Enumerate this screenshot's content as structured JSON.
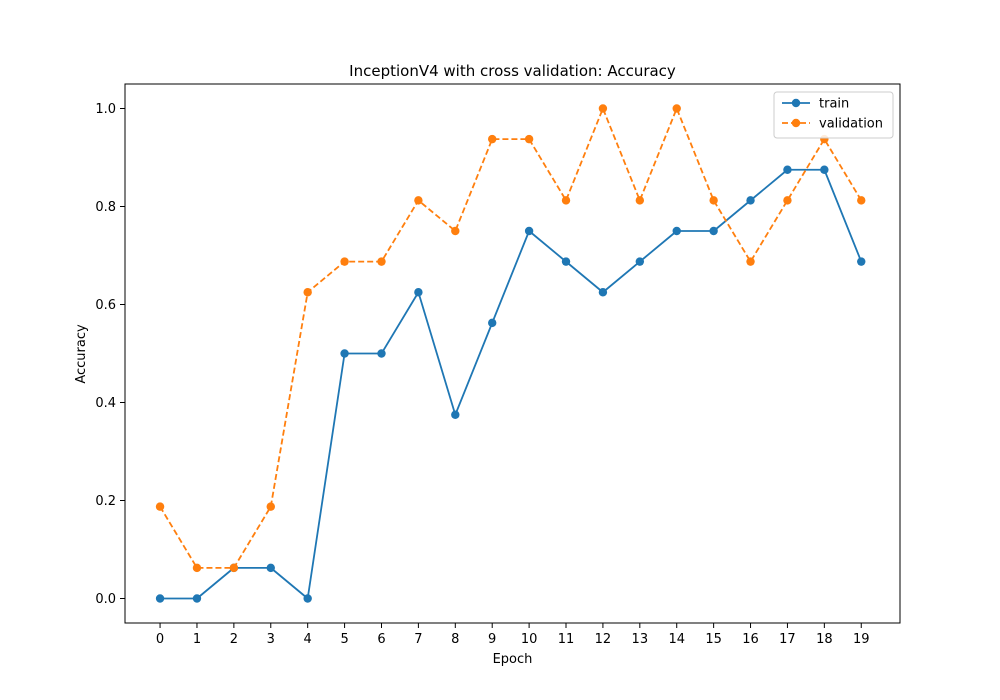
{
  "chart_data": {
    "type": "line",
    "title": "InceptionV4 with cross validation: Accuracy",
    "xlabel": "Epoch",
    "ylabel": "Accuracy",
    "x": [
      0,
      1,
      2,
      3,
      4,
      5,
      6,
      7,
      8,
      9,
      10,
      11,
      12,
      13,
      14,
      15,
      16,
      17,
      18,
      19
    ],
    "x_ticks": [
      "0",
      "1",
      "2",
      "3",
      "4",
      "5",
      "6",
      "7",
      "8",
      "9",
      "10",
      "11",
      "12",
      "13",
      "14",
      "15",
      "16",
      "17",
      "18",
      "19"
    ],
    "y_ticks": [
      "0.0",
      "0.2",
      "0.4",
      "0.6",
      "0.8",
      "1.0"
    ],
    "xlim": [
      -0.95,
      20.05
    ],
    "ylim": [
      -0.05,
      1.05
    ],
    "grid": false,
    "legend_position": "top-right",
    "series": [
      {
        "name": "train",
        "color": "#1f77b4",
        "line_style": "solid",
        "marker": "circle",
        "values": [
          0.0,
          0.0,
          0.0625,
          0.0625,
          0.0,
          0.5,
          0.5,
          0.625,
          0.375,
          0.5625,
          0.75,
          0.6875,
          0.625,
          0.6875,
          0.75,
          0.75,
          0.8125,
          0.875,
          0.875,
          0.6875
        ]
      },
      {
        "name": "validation",
        "color": "#ff7f0e",
        "line_style": "dashed",
        "marker": "circle",
        "values": [
          0.1875,
          0.0625,
          0.0625,
          0.1875,
          0.625,
          0.6875,
          0.6875,
          0.8125,
          0.75,
          0.9375,
          0.9375,
          0.8125,
          1.0,
          0.8125,
          1.0,
          0.8125,
          0.6875,
          0.8125,
          0.9375,
          0.8125
        ]
      }
    ]
  }
}
